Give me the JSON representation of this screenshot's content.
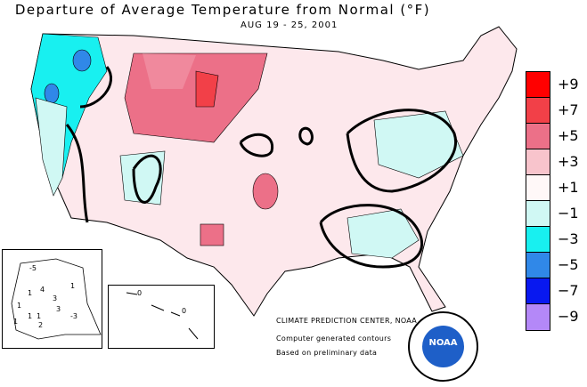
{
  "title": "Departure of Average Temperature from Normal (°F)",
  "subtitle": "AUG 19 - 25, 2001",
  "legend": [
    {
      "label": "+9",
      "color": "#ff0000"
    },
    {
      "label": "+7",
      "color": "#f24048"
    },
    {
      "label": "+5",
      "color": "#ec7088"
    },
    {
      "label": "+3",
      "color": "#f8c4cc"
    },
    {
      "label": "+1",
      "color": "#fff8f8"
    },
    {
      "label": "−1",
      "color": "#d0f8f4"
    },
    {
      "label": "−3",
      "color": "#18f0f0"
    },
    {
      "label": "−5",
      "color": "#3088e8"
    },
    {
      "label": "−7",
      "color": "#0818f0"
    },
    {
      "label": "−9",
      "color": "#b488f8"
    }
  ],
  "credits": {
    "line1": "CLIMATE PREDICTION CENTER, NOAA",
    "line2": "Computer generated contours",
    "line3": "Based on preliminary data"
  },
  "logo": {
    "text": "NOAA"
  },
  "alaska_labels": [
    "-5",
    "1",
    "4",
    "3",
    "1",
    "1",
    "1",
    "2",
    "3",
    "-3",
    "1",
    "1"
  ],
  "hawaii_labels": [
    "0",
    "0"
  ]
}
